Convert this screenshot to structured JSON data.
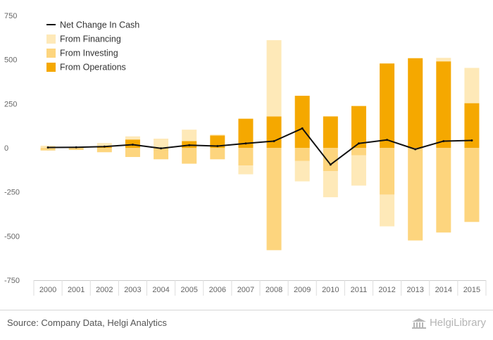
{
  "chart_data": {
    "type": "bar",
    "categories": [
      "2000",
      "2001",
      "2002",
      "2003",
      "2004",
      "2005",
      "2006",
      "2007",
      "2008",
      "2009",
      "2010",
      "2011",
      "2012",
      "2013",
      "2014",
      "2015"
    ],
    "ylim": [
      -750,
      750
    ],
    "yticks": [
      -750,
      -500,
      -250,
      0,
      250,
      500,
      750
    ],
    "grid": false,
    "legend_position": "top-left",
    "series": [
      {
        "name": "From Operations",
        "kind": "bar",
        "color": "#f5a800",
        "values": [
          0,
          0,
          5,
          47,
          0,
          38,
          70,
          165,
          178,
          295,
          178,
          237,
          478,
          508,
          490,
          253
        ]
      },
      {
        "name": "From Investing",
        "kind": "bar",
        "color": "#fdd57e",
        "values": [
          -15,
          -12,
          -25,
          -52,
          -65,
          -90,
          -65,
          -100,
          -580,
          -75,
          -132,
          -42,
          -265,
          -525,
          -480,
          -420
        ]
      },
      {
        "name": "From Financing",
        "kind": "bar",
        "color": "#fee9b8",
        "values": [
          12,
          3,
          22,
          18,
          52,
          65,
          5,
          -50,
          432,
          -115,
          -148,
          -172,
          -180,
          0,
          20,
          200
        ]
      },
      {
        "name": "Net Change In Cash",
        "kind": "line",
        "color": "#111111",
        "values": [
          2,
          3,
          7,
          18,
          -3,
          15,
          10,
          25,
          38,
          110,
          -95,
          25,
          45,
          -8,
          38,
          42
        ]
      }
    ],
    "legend": [
      {
        "name": "Net Change In Cash",
        "swatch": "line",
        "color": "#111111"
      },
      {
        "name": "From Financing",
        "swatch": "box",
        "color": "#fee9b8"
      },
      {
        "name": "From Investing",
        "swatch": "box",
        "color": "#fdd57e"
      },
      {
        "name": "From Operations",
        "swatch": "box",
        "color": "#f5a800"
      }
    ]
  },
  "footer": {
    "source": "Source: Company Data, Helgi Analytics",
    "logo": "HelgiLibrary",
    "logo_icon": "library-building-icon"
  }
}
